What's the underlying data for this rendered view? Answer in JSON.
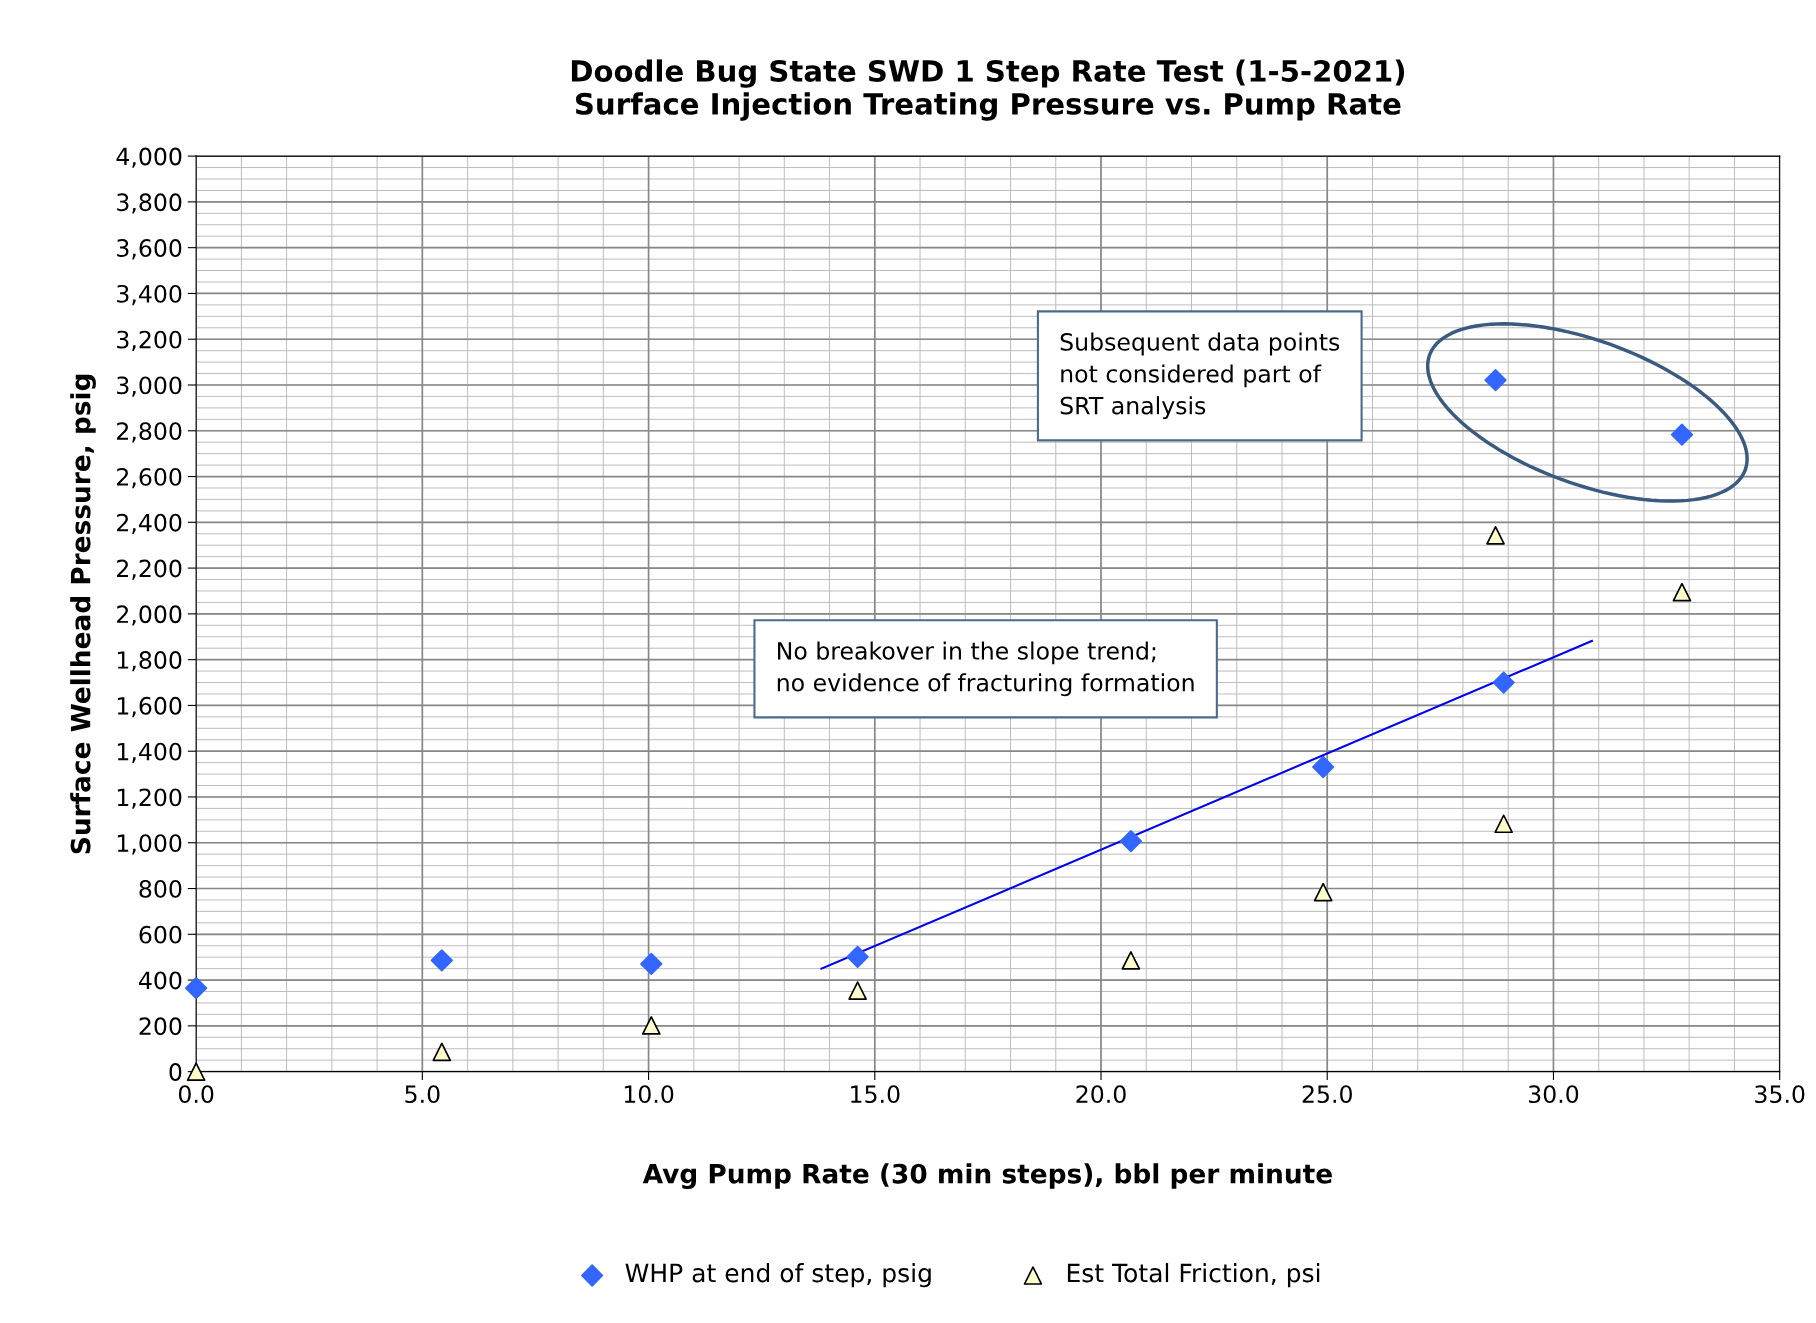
{
  "chart_data": {
    "type": "scatter",
    "title": "Doodle Bug State SWD 1 Step Rate Test (1-5-2021)\nSurface Injection Treating Pressure vs. Pump Rate",
    "xlabel": "Avg Pump Rate (30 min steps), bbl per minute",
    "ylabel": "Surface Wellhead Pressure, psig",
    "series": [
      {
        "name": "WHP at end of step, psig",
        "color": "#3366ff",
        "marker": "diamond",
        "x": [
          0.0,
          5.43,
          10.06,
          14.62,
          20.66,
          24.91,
          28.9,
          28.72,
          32.84
        ],
        "values": [
          365,
          486,
          471,
          501,
          1007,
          1331,
          1700,
          3021,
          2783
        ]
      },
      {
        "name": "Est Total Friction, psi",
        "color": "#ffffcc",
        "marker": "triangle",
        "x": [
          0.0,
          5.43,
          10.06,
          14.62,
          20.66,
          24.91,
          28.9,
          28.72,
          32.84
        ],
        "values": [
          0,
          86,
          202,
          354,
          486,
          784,
          1083,
          2343,
          2095
        ]
      },
      {
        "type": "line",
        "color": "#0000ee",
        "marker": "none",
        "x": [
          13.82,
          30.85
        ],
        "values": [
          450,
          1882
        ]
      }
    ],
    "xlim": [
      0,
      35
    ],
    "xticks": [
      {
        "value": 0,
        "label": "0.0"
      },
      {
        "value": 5,
        "label": "5.0"
      },
      {
        "value": 10,
        "label": "10.0"
      },
      {
        "value": 15,
        "label": "15.0"
      },
      {
        "value": 20,
        "label": "20.0"
      },
      {
        "value": 25,
        "label": "25.0"
      },
      {
        "value": 30,
        "label": "30.0"
      },
      {
        "value": 35,
        "label": "35.0"
      }
    ],
    "ylim": [
      0,
      4000
    ],
    "yticks": [
      0,
      200,
      400,
      600,
      800,
      {
        "value": 1000,
        "label": "1,000"
      },
      {
        "value": 1200,
        "label": "1,200"
      },
      {
        "value": 1400,
        "label": "1,400"
      },
      {
        "value": 1600,
        "label": "1,600"
      },
      {
        "value": 1800,
        "label": "1,800"
      },
      {
        "value": 2000,
        "label": "2,000"
      },
      {
        "value": 2200,
        "label": "2,200"
      },
      {
        "value": 2400,
        "label": "2,400"
      },
      {
        "value": 2600,
        "label": "2,600"
      },
      {
        "value": 2800,
        "label": "2,800"
      },
      {
        "value": 3000,
        "label": "3,000"
      },
      {
        "value": 3200,
        "label": "3,200"
      },
      {
        "value": 3400,
        "label": "3,400"
      },
      {
        "value": 3600,
        "label": "3,600"
      },
      {
        "value": 3800,
        "label": "3,800"
      },
      {
        "value": 4000,
        "label": "4,000"
      }
    ],
    "grid": true,
    "legend": "bottom",
    "annotations": [
      "Subsequent data points\nnot considered part of\nSRT analysis",
      "No breakover in the slope trend;\nno evidence of fracturing formation"
    ]
  }
}
